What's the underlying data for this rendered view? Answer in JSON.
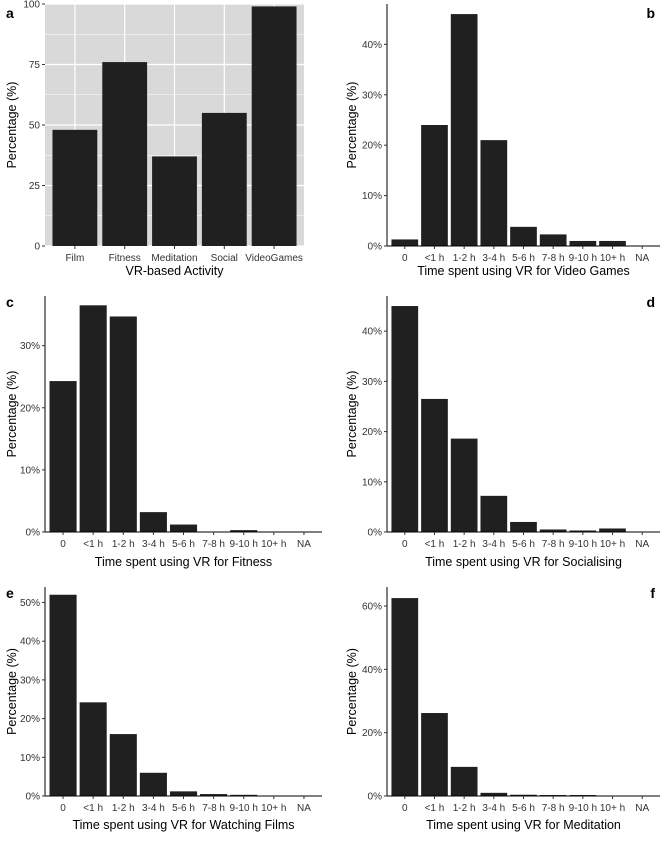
{
  "chart_data": [
    {
      "panel": "a",
      "type": "bar",
      "theme": "grey-background",
      "xlabel": "VR-based Activity",
      "ylabel": "Percentage (%)",
      "categories": [
        "Film",
        "Fitness",
        "Meditation",
        "Social",
        "VideoGames"
      ],
      "values": [
        48,
        76,
        37,
        55,
        99
      ],
      "ylim": [
        0,
        100
      ],
      "yticks": [
        0,
        25,
        50,
        75,
        100
      ],
      "ytick_labels": [
        "0",
        "25",
        "50",
        "75",
        "100"
      ],
      "grid": true
    },
    {
      "panel": "b",
      "type": "bar",
      "theme": "classic",
      "xlabel": "Time spent using VR for Video Games",
      "ylabel": "Percentage (%)",
      "categories": [
        "0",
        "<1 h",
        "1-2 h",
        "3-4 h",
        "5-6 h",
        "7-8 h",
        "9-10 h",
        "10+ h",
        "NA"
      ],
      "values": [
        1.3,
        24,
        46,
        21,
        3.8,
        2.3,
        1.0,
        1.0,
        0
      ],
      "ylim": [
        0,
        48
      ],
      "yticks": [
        0,
        10,
        20,
        30,
        40
      ],
      "ytick_labels": [
        "0%",
        "10%",
        "20%",
        "30%",
        "40%"
      ],
      "grid": false
    },
    {
      "panel": "c",
      "type": "bar",
      "theme": "classic",
      "xlabel": "Time spent using VR for Fitness",
      "ylabel": "Percentage (%)",
      "categories": [
        "0",
        "<1 h",
        "1-2 h",
        "3-4 h",
        "5-6 h",
        "7-8 h",
        "9-10 h",
        "10+ h",
        "NA"
      ],
      "values": [
        24.3,
        36.5,
        34.7,
        3.2,
        1.2,
        0,
        0.3,
        0,
        0
      ],
      "ylim": [
        0,
        38
      ],
      "yticks": [
        0,
        10,
        20,
        30
      ],
      "ytick_labels": [
        "0%",
        "10%",
        "20%",
        "30%"
      ],
      "grid": false
    },
    {
      "panel": "d",
      "type": "bar",
      "theme": "classic",
      "xlabel": "Time spent using VR for Socialising",
      "ylabel": "Percentage (%)",
      "categories": [
        "0",
        "<1 h",
        "1-2 h",
        "3-4 h",
        "5-6 h",
        "7-8 h",
        "9-10 h",
        "10+ h",
        "NA"
      ],
      "values": [
        45,
        26.5,
        18.6,
        7.2,
        2.0,
        0.5,
        0.3,
        0.7,
        0
      ],
      "ylim": [
        0,
        47
      ],
      "yticks": [
        0,
        10,
        20,
        30,
        40
      ],
      "ytick_labels": [
        "0%",
        "10%",
        "20%",
        "30%",
        "40%"
      ],
      "grid": false
    },
    {
      "panel": "e",
      "type": "bar",
      "theme": "classic",
      "xlabel": "Time spent using VR for Watching Films",
      "ylabel": "Percentage (%)",
      "categories": [
        "0",
        "<1 h",
        "1-2 h",
        "3-4 h",
        "5-6 h",
        "7-8 h",
        "9-10 h",
        "10+ h",
        "NA"
      ],
      "values": [
        52,
        24.2,
        16,
        6.0,
        1.2,
        0.5,
        0.3,
        0,
        0
      ],
      "ylim": [
        0,
        54
      ],
      "yticks": [
        0,
        10,
        20,
        30,
        40,
        50
      ],
      "ytick_labels": [
        "0%",
        "10%",
        "20%",
        "30%",
        "40%",
        "50%"
      ],
      "grid": false
    },
    {
      "panel": "f",
      "type": "bar",
      "theme": "classic",
      "xlabel": "Time spent using VR for Meditation",
      "ylabel": "Percentage (%)",
      "categories": [
        "0",
        "<1 h",
        "1-2 h",
        "3-4 h",
        "5-6 h",
        "7-8 h",
        "9-10 h",
        "10+ h",
        "NA"
      ],
      "values": [
        62.5,
        26.2,
        9.2,
        1.0,
        0.4,
        0.3,
        0.3,
        0,
        0
      ],
      "ylim": [
        0,
        66
      ],
      "yticks": [
        0,
        20,
        40,
        60
      ],
      "ytick_labels": [
        "0%",
        "20%",
        "40%",
        "60%"
      ],
      "grid": false
    }
  ],
  "colors": {
    "bar": "#202020",
    "panel_bg_grey": "#d9d9d9",
    "grid": "#ffffff",
    "axis": "#000000",
    "text": "#333333"
  }
}
